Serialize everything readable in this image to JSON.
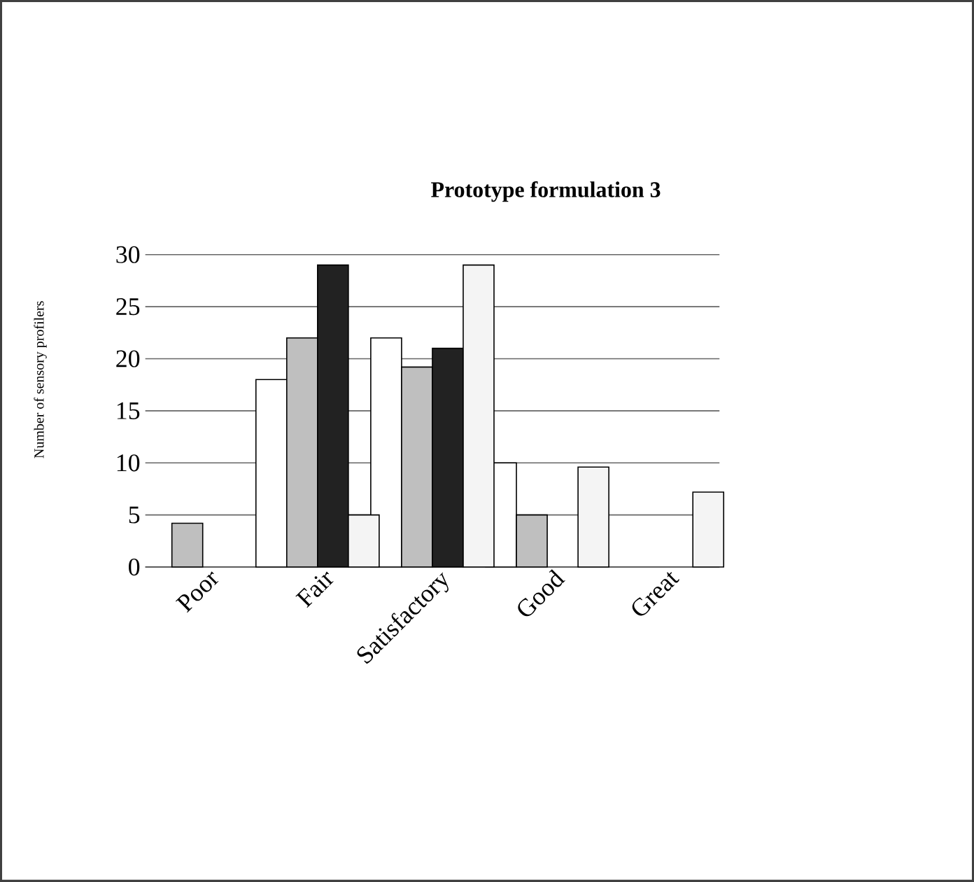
{
  "chart_data": {
    "type": "bar",
    "title": "Prototype formulation 3",
    "ylabel": "Number of sensory profilers",
    "categories": [
      "Poor",
      "Fair",
      "Satisfactory",
      "Good",
      "Great"
    ],
    "series": [
      {
        "color": "#ffffff",
        "values": [
          null,
          18,
          22,
          10,
          null
        ]
      },
      {
        "color": "#bfbfbf",
        "values": [
          4.2,
          22,
          19.2,
          5,
          null
        ]
      },
      {
        "color": "#222222",
        "values": [
          null,
          29,
          21,
          null,
          null
        ]
      },
      {
        "color": "#f4f4f4",
        "values": [
          null,
          5,
          29,
          9.6,
          7.2
        ]
      }
    ],
    "ylim": [
      0,
      30
    ],
    "yticks": [
      0,
      5,
      10,
      15,
      20,
      25,
      30
    ],
    "grid": "y"
  }
}
